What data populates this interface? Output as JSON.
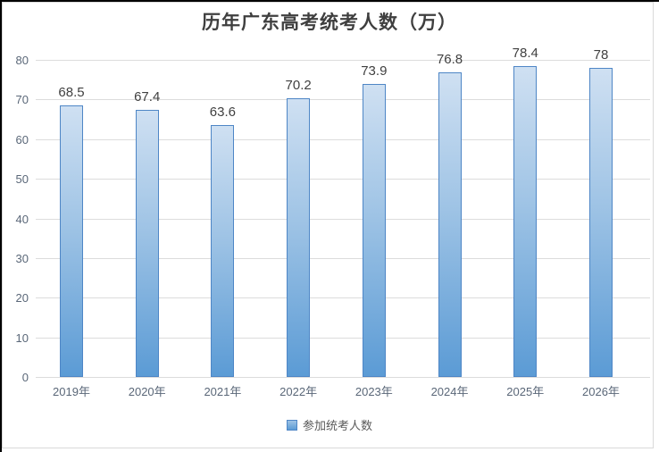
{
  "chart_data": {
    "type": "bar",
    "title": "历年广东高考统考人数（万）",
    "categories": [
      "2019年",
      "2020年",
      "2021年",
      "2022年",
      "2023年",
      "2024年",
      "2025年",
      "2026年"
    ],
    "series": [
      {
        "name": "参加统考人数",
        "values": [
          68.5,
          67.4,
          63.6,
          70.2,
          73.9,
          76.8,
          78.4,
          78
        ],
        "data_labels": [
          "68.5",
          "67.4",
          "63.6",
          "70.2",
          "73.9",
          "76.8",
          "78.4",
          "78"
        ]
      }
    ],
    "xlabel": "",
    "ylabel": "",
    "ylim": [
      0,
      80
    ],
    "yticks": [
      0,
      10,
      20,
      30,
      40,
      50,
      60,
      70,
      80
    ],
    "grid": true,
    "legend_position": "bottom",
    "colors": {
      "bar_gradient_top": "#cfe0f2",
      "bar_gradient_bottom": "#5b9bd5",
      "bar_border": "#4e86c6",
      "gridline": "#dcdcdc",
      "title_text": "#3f3f3f",
      "axis_text": "#5a6778",
      "value_label_text": "#404040",
      "legend_text": "#595959",
      "frame_border": "#d9d9d9",
      "screenshot_edge": "#000000"
    }
  }
}
